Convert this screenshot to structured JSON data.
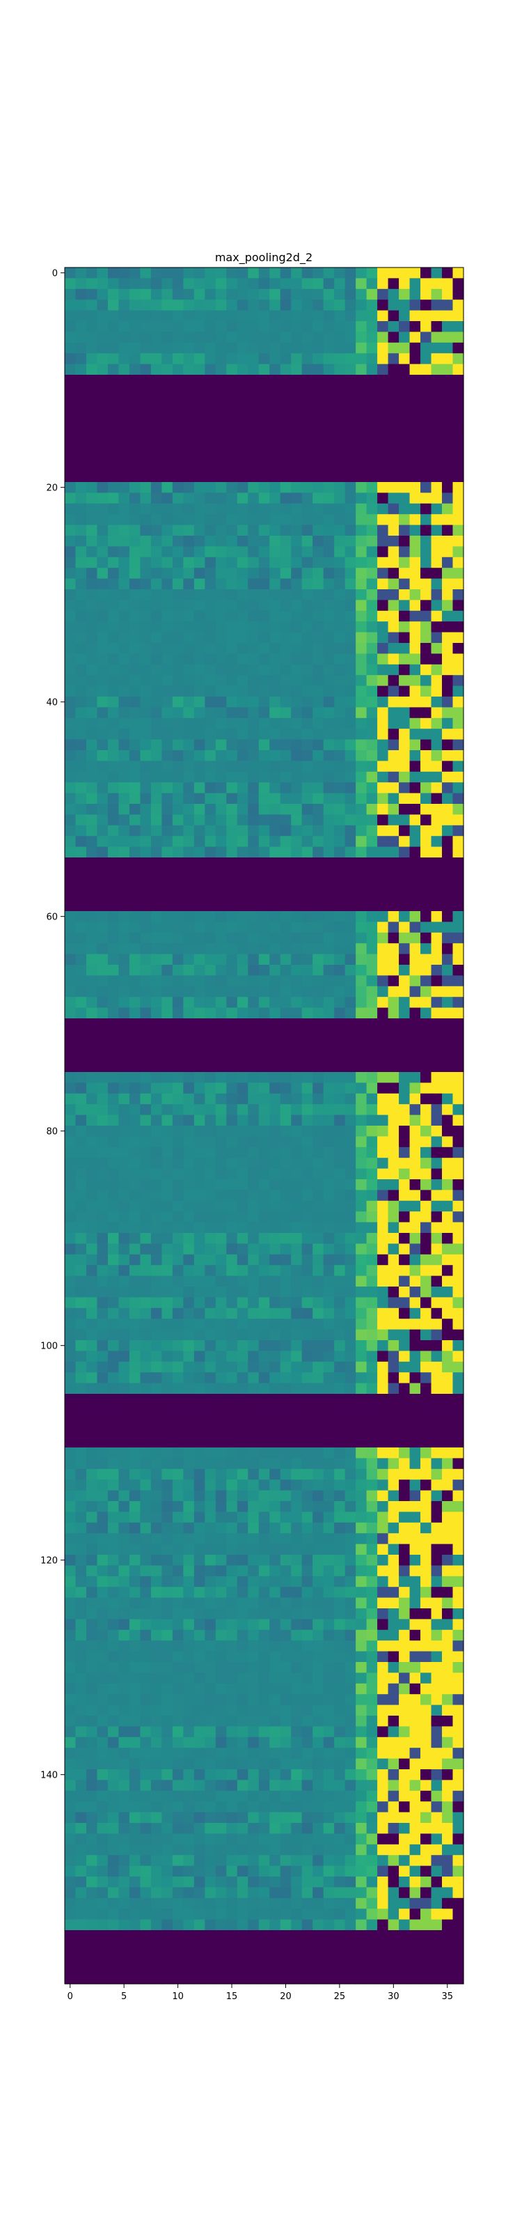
{
  "chart_data": {
    "type": "heatmap",
    "title": "max_pooling2d_2",
    "xlabel": "",
    "ylabel": "",
    "x_ticks": [
      0,
      5,
      10,
      15,
      20,
      25,
      30,
      35
    ],
    "y_ticks": [
      0,
      20,
      40,
      60,
      80,
      100,
      120,
      140
    ],
    "xlim": [
      -0.5,
      36.5
    ],
    "ylim": [
      159.5,
      -0.5
    ],
    "n_cols": 37,
    "n_rows": 160,
    "colormap": "viridis",
    "value_range": [
      0,
      1
    ],
    "zero_row_blocks": [
      [
        10,
        19
      ],
      [
        55,
        59
      ],
      [
        70,
        74
      ],
      [
        105,
        109
      ],
      [
        155,
        159
      ]
    ],
    "bright_right_edge_from_col": 29,
    "grid": false,
    "legend": "none"
  },
  "colors": {
    "viridis_low": "#440154",
    "viridis_mid": "#21918c",
    "viridis_high": "#fde725",
    "axis": "#000000",
    "background": "#ffffff"
  }
}
